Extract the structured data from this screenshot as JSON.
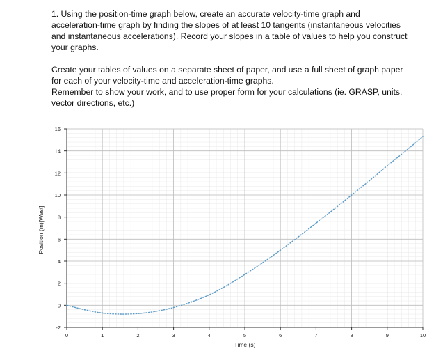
{
  "question": {
    "lines": [
      "1.  Using the position-time graph below, create an accurate velocity-time graph and",
      "acceleration-time graph by finding the slopes of at least 10 tangents (instantaneous velocities",
      "and instantaneous accelerations).  Record your slopes in a table of values to help you construct",
      "your graphs."
    ]
  },
  "instructions": {
    "lines": [
      "Create your tables of values on a separate sheet of paper, and use a full sheet of graph paper",
      "for each of your velocity-time and acceleration-time graphs.",
      "Remember to show your work, and to use proper form for your calculations (ie. GRASP, units,",
      "vector directions, etc.)"
    ]
  },
  "chart_data": {
    "type": "line",
    "title": "",
    "xlabel": "Time (s)",
    "ylabel": "Position (m)[West]",
    "xlim": [
      0,
      10
    ],
    "ylim": [
      -2,
      16
    ],
    "x_ticks": [
      0,
      1,
      2,
      3,
      4,
      5,
      6,
      7,
      8,
      9,
      10
    ],
    "y_ticks": [
      -2,
      0,
      2,
      4,
      6,
      8,
      10,
      12,
      14,
      16
    ],
    "grid": true,
    "legend": "none",
    "series": [
      {
        "color": "#5b9bc6",
        "x": [
          0,
          0.5,
          1,
          1.5,
          2,
          2.5,
          3,
          3.5,
          4,
          4.5,
          5,
          5.5,
          6,
          6.5,
          7,
          7.5,
          8,
          8.5,
          9,
          9.5,
          10
        ],
        "y": [
          0,
          -0.4,
          -0.7,
          -0.8,
          -0.75,
          -0.55,
          -0.2,
          0.3,
          0.95,
          1.8,
          2.8,
          3.85,
          5.0,
          6.2,
          7.45,
          8.7,
          10.0,
          11.3,
          12.65,
          13.95,
          15.3
        ]
      }
    ]
  }
}
